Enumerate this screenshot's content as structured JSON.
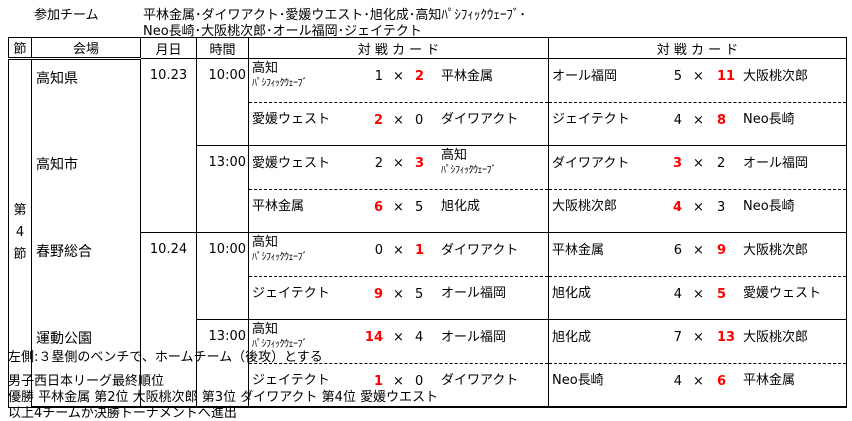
{
  "teams_label": "参加チーム",
  "teams_line1": "平林金属･ダイワアクト･愛媛ウエスト･旭化成･高知ﾊﾟｼﾌｨｯｸｳｪｰﾌﾞ･",
  "teams_line2": "Neo長崎･大阪桃次郎･オール福岡･ジェイテクト",
  "headers": {
    "setsu": "節",
    "venue": "会場",
    "date": "月日",
    "time": "時間",
    "card1": "対 戦 カ ー ド",
    "card2": "対 戦 カ ー ド"
  },
  "setsu": "第\n4\n節",
  "times_sep": "×",
  "rows": [
    {
      "venue": "高知県",
      "date": "10.23",
      "time": "10:00",
      "cards": [
        {
          "home": "高知",
          "home_sub": "ﾊﾟｼﾌｨｯｸｳｪｰﾌﾞ",
          "hs": 1,
          "as": 2,
          "away": "平林金属",
          "away_sub": ""
        },
        {
          "home": "オール福岡",
          "home_sub": "",
          "hs": 5,
          "as": 11,
          "away": "大阪桃次郎",
          "away_sub": ""
        }
      ]
    },
    {
      "venue": "",
      "date": "",
      "time": "",
      "cards": [
        {
          "home": "愛媛ウェスト",
          "home_sub": "",
          "hs": 2,
          "as": 0,
          "away": "ダイワアクト",
          "away_sub": ""
        },
        {
          "home": "ジェイテクト",
          "home_sub": "",
          "hs": 4,
          "as": 8,
          "away": "Neo長崎",
          "away_sub": ""
        }
      ]
    },
    {
      "venue": "高知市",
      "date": "",
      "time": "13:00",
      "cards": [
        {
          "home": "愛媛ウェスト",
          "home_sub": "",
          "hs": 2,
          "as": 3,
          "away": "高知",
          "away_sub": "ﾊﾟｼﾌｨｯｸｳｪｰﾌﾞ"
        },
        {
          "home": "ダイワアクト",
          "home_sub": "",
          "hs": 3,
          "as": 2,
          "away": "オール福岡",
          "away_sub": ""
        }
      ]
    },
    {
      "venue": "",
      "date": "",
      "time": "",
      "cards": [
        {
          "home": "平林金属",
          "home_sub": "",
          "hs": 6,
          "as": 5,
          "away": "旭化成",
          "away_sub": ""
        },
        {
          "home": "大阪桃次郎",
          "home_sub": "",
          "hs": 4,
          "as": 3,
          "away": "Neo長崎",
          "away_sub": ""
        }
      ]
    },
    {
      "venue": "春野総合",
      "date": "10.24",
      "time": "10:00",
      "cards": [
        {
          "home": "高知",
          "home_sub": "ﾊﾟｼﾌｨｯｸｳｪｰﾌﾞ",
          "hs": 0,
          "as": 1,
          "away": "ダイワアクト",
          "away_sub": ""
        },
        {
          "home": "平林金属",
          "home_sub": "",
          "hs": 6,
          "as": 9,
          "away": "大阪桃次郎",
          "away_sub": ""
        }
      ]
    },
    {
      "venue": "",
      "date": "",
      "time": "",
      "cards": [
        {
          "home": "ジェイテクト",
          "home_sub": "",
          "hs": 9,
          "as": 5,
          "away": "オール福岡",
          "away_sub": ""
        },
        {
          "home": "旭化成",
          "home_sub": "",
          "hs": 4,
          "as": 5,
          "away": "愛媛ウェスト",
          "away_sub": ""
        }
      ]
    },
    {
      "venue": "運動公園",
      "date": "",
      "time": "13:00",
      "cards": [
        {
          "home": "高知",
          "home_sub": "ﾊﾟｼﾌｨｯｸｳｪｰﾌﾞ",
          "hs": 14,
          "as": 4,
          "away": "オール福岡",
          "away_sub": ""
        },
        {
          "home": "旭化成",
          "home_sub": "",
          "hs": 7,
          "as": 13,
          "away": "大阪桃次郎",
          "away_sub": ""
        }
      ]
    },
    {
      "venue": "",
      "date": "",
      "time": "",
      "cards": [
        {
          "home": "ジェイテクト",
          "home_sub": "",
          "hs": 1,
          "as": 0,
          "away": "ダイワアクト",
          "away_sub": ""
        },
        {
          "home": "Neo長崎",
          "home_sub": "",
          "hs": 4,
          "as": 6,
          "away": "平林金属",
          "away_sub": ""
        }
      ]
    }
  ],
  "note": "左側:３塁側のベンチで、ホームチーム（後攻）とする",
  "standings_title": "男子西日本リーグ最終順位",
  "standings": "優勝 平林金属 第2位 大阪桃次郎 第3位 ダイワアクト 第4位 愛媛ウエスト",
  "advance": "以上4チームが決勝トーナメントへ進出",
  "colors": {
    "winner": "#ff0000"
  }
}
